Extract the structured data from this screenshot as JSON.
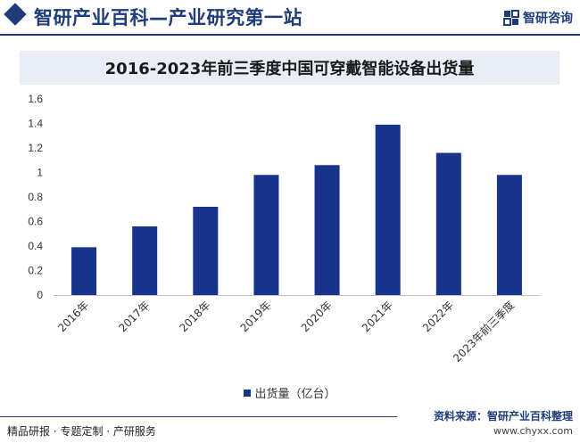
{
  "header": {
    "site_title": "智研产业百科—产业研究第一站",
    "brand_name": "智研咨询"
  },
  "footer": {
    "services": "精品研报 · 专题定制 · 产研服务",
    "source": "资料来源：智研产业百科整理",
    "url": "www.chyxx.com"
  },
  "colors": {
    "bar": "#17338a",
    "brand": "#1f3c7a",
    "title_band": "#e8edf6"
  },
  "chart_data": {
    "type": "bar",
    "title": "2016-2023年前三季度中国可穿戴智能设备出货量",
    "categories": [
      "2016年",
      "2017年",
      "2018年",
      "2019年",
      "2020年",
      "2021年",
      "2022年",
      "2023年前三季度"
    ],
    "series": [
      {
        "name": "出货量（亿台）",
        "values": [
          0.39,
          0.56,
          0.72,
          0.98,
          1.06,
          1.39,
          1.16,
          0.98
        ]
      }
    ],
    "ylim": [
      0,
      1.6
    ],
    "yticks": [
      "0",
      "0.2",
      "0.4",
      "0.6",
      "0.8",
      "1",
      "1.2",
      "1.4",
      "1.6"
    ],
    "grid": false,
    "legend": "bottom"
  }
}
